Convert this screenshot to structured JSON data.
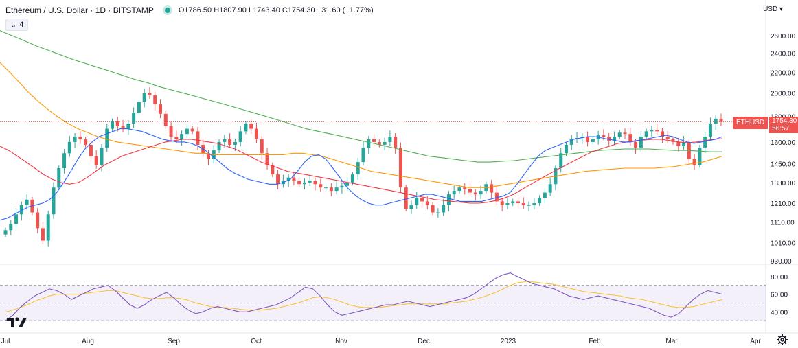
{
  "legend": {
    "symbol": "Ethereum / U.S. Dollar · 1D · BITSTAMP",
    "ohlc": "O1786.50  H1807.90  L1743.40  C1754.30  −31.60 (−1.77%)"
  },
  "indicators_collapsed": {
    "count": "4"
  },
  "currency": "USD",
  "price_tag": {
    "symbol": "ETHUSD",
    "price": "1754.30",
    "countdown": "56:57"
  },
  "y_axis_labels": [
    "2600.00",
    "2400.00",
    "2200.00",
    "2000.00",
    "1800.00",
    "1600.00",
    "1450.00",
    "1330.00",
    "1210.00",
    "1110.00",
    "1010.00",
    "930.00"
  ],
  "rsi_axis_labels": [
    "80.00",
    "60.00",
    "40.00"
  ],
  "x_axis_labels": [
    "Jul",
    "Aug",
    "Sep",
    "Oct",
    "Nov",
    "Dec",
    "2023",
    "Feb",
    "Mar",
    "Apr"
  ],
  "colors": {
    "up": "#26a69a",
    "down": "#ef5350",
    "sma_fast": "#2962ff",
    "sma_mid": "#f23645",
    "sma_slow": "#ff9800",
    "sma_long": "#4caf50",
    "rsi": "#7e57c2",
    "rsi_signal": "#fbc02d",
    "rsi_band": "#7e57c2"
  },
  "chart_data": {
    "type": "candlestick",
    "ylim": [
      930,
      2700
    ],
    "price": [
      1070,
      1100,
      1150,
      1200,
      1230,
      1160,
      1080,
      1020,
      1150,
      1300,
      1420,
      1520,
      1600,
      1640,
      1620,
      1580,
      1500,
      1440,
      1560,
      1700,
      1760,
      1720,
      1700,
      1740,
      1830,
      1920,
      2000,
      1980,
      1900,
      1820,
      1720,
      1640,
      1620,
      1660,
      1700,
      1680,
      1580,
      1520,
      1480,
      1540,
      1600,
      1620,
      1580,
      1600,
      1680,
      1740,
      1700,
      1620,
      1520,
      1440,
      1380,
      1320,
      1340,
      1360,
      1340,
      1320,
      1330,
      1340,
      1320,
      1300,
      1300,
      1280,
      1300,
      1310,
      1330,
      1380,
      1460,
      1560,
      1620,
      1600,
      1580,
      1600,
      1640,
      1560,
      1300,
      1180,
      1200,
      1240,
      1220,
      1200,
      1160,
      1160,
      1200,
      1260,
      1280,
      1300,
      1290,
      1270,
      1260,
      1280,
      1320,
      1270,
      1220,
      1200,
      1210,
      1220,
      1210,
      1200,
      1200,
      1210,
      1240,
      1270,
      1320,
      1420,
      1520,
      1580,
      1620,
      1630,
      1640,
      1600,
      1620,
      1650,
      1640,
      1610,
      1640,
      1670,
      1660,
      1600,
      1560,
      1640,
      1680,
      1690,
      1680,
      1640,
      1620,
      1600,
      1570,
      1600,
      1480,
      1440,
      1560,
      1640,
      1740,
      1780,
      1754.3
    ],
    "sma_fast": [
      1120,
      1130,
      1150,
      1170,
      1190,
      1200,
      1210,
      1230,
      1270,
      1330,
      1400,
      1480,
      1550,
      1600,
      1640,
      1660,
      1680,
      1700,
      1700,
      1690,
      1680,
      1660,
      1640,
      1620,
      1610,
      1600,
      1600,
      1590,
      1570,
      1540,
      1500,
      1460,
      1420,
      1390,
      1370,
      1350,
      1340,
      1330,
      1320,
      1320,
      1330,
      1350,
      1400,
      1460,
      1500,
      1510,
      1480,
      1420,
      1360,
      1300,
      1260,
      1230,
      1210,
      1200,
      1200,
      1210,
      1220,
      1230,
      1240,
      1250,
      1260,
      1260,
      1250,
      1240,
      1230,
      1220,
      1220,
      1220,
      1220,
      1230,
      1240,
      1250,
      1270,
      1320,
      1380,
      1440,
      1500,
      1540,
      1560,
      1580,
      1600,
      1620,
      1630,
      1640,
      1640,
      1630,
      1620,
      1610,
      1600,
      1600,
      1610,
      1620,
      1630,
      1640,
      1650,
      1640,
      1620,
      1600,
      1590,
      1600,
      1610,
      1620,
      1640
    ],
    "sma_mid": [
      1570,
      1540,
      1500,
      1460,
      1420,
      1380,
      1350,
      1330,
      1320,
      1330,
      1360,
      1400,
      1440,
      1470,
      1500,
      1520,
      1540,
      1560,
      1580,
      1600,
      1610,
      1620,
      1620,
      1610,
      1600,
      1590,
      1570,
      1550,
      1520,
      1490,
      1460,
      1440,
      1420,
      1400,
      1390,
      1380,
      1370,
      1360,
      1350,
      1340,
      1330,
      1320,
      1310,
      1300,
      1290,
      1280,
      1270,
      1260,
      1250,
      1240,
      1230,
      1225,
      1220,
      1215,
      1210,
      1210,
      1215,
      1225,
      1240,
      1260,
      1290,
      1320,
      1350,
      1380,
      1410,
      1440,
      1470,
      1500,
      1530,
      1550,
      1570,
      1590,
      1600,
      1610,
      1615,
      1620,
      1620,
      1610,
      1600,
      1595,
      1600,
      1610,
      1620,
      1625
    ],
    "sma_slow": [
      2300,
      2200,
      2100,
      2000,
      1920,
      1850,
      1790,
      1740,
      1700,
      1670,
      1640,
      1620,
      1600,
      1590,
      1580,
      1570,
      1560,
      1550,
      1540,
      1530,
      1520,
      1520,
      1510,
      1510,
      1510,
      1510,
      1510,
      1510,
      1510,
      1510,
      1520,
      1520,
      1510,
      1500,
      1480,
      1460,
      1440,
      1420,
      1400,
      1390,
      1380,
      1370,
      1360,
      1350,
      1340,
      1330,
      1320,
      1310,
      1300,
      1300,
      1300,
      1310,
      1320,
      1330,
      1340,
      1350,
      1360,
      1370,
      1380,
      1390,
      1400,
      1405,
      1410,
      1415,
      1420,
      1420,
      1420,
      1420,
      1425,
      1430,
      1440,
      1450,
      1460,
      1480,
      1500
    ],
    "sma_long": [
      2660,
      2600,
      2540,
      2480,
      2430,
      2380,
      2330,
      2290,
      2250,
      2210,
      2170,
      2130,
      2100,
      2060,
      2030,
      2000,
      1970,
      1940,
      1910,
      1880,
      1850,
      1820,
      1790,
      1760,
      1730,
      1700,
      1680,
      1660,
      1640,
      1620,
      1600,
      1580,
      1560,
      1540,
      1520,
      1500,
      1490,
      1480,
      1470,
      1460,
      1460,
      1465,
      1470,
      1480,
      1490,
      1500,
      1510,
      1520,
      1530,
      1540,
      1545,
      1550,
      1550,
      1550,
      1545,
      1540,
      1540,
      1535,
      1530,
      1530
    ],
    "rsi": [
      30,
      36,
      45,
      52,
      58,
      62,
      66,
      64,
      60,
      54,
      58,
      62,
      66,
      68,
      70,
      64,
      56,
      48,
      44,
      48,
      54,
      58,
      62,
      56,
      48,
      42,
      38,
      40,
      44,
      46,
      44,
      42,
      40,
      40,
      42,
      44,
      46,
      48,
      52,
      56,
      62,
      68,
      66,
      58,
      48,
      40,
      36,
      38,
      40,
      42,
      44,
      46,
      48,
      48,
      50,
      52,
      50,
      48,
      46,
      48,
      50,
      52,
      54,
      56,
      60,
      66,
      72,
      78,
      82,
      84,
      80,
      76,
      72,
      70,
      68,
      66,
      62,
      58,
      56,
      54,
      56,
      58,
      56,
      54,
      52,
      50,
      48,
      46,
      44,
      40,
      36,
      34,
      38,
      46,
      54,
      60,
      64,
      62,
      60
    ],
    "rsi_signal": [
      40,
      42,
      45,
      48,
      52,
      55,
      58,
      60,
      60,
      60,
      60,
      61,
      62,
      63,
      64,
      64,
      62,
      60,
      58,
      56,
      55,
      55,
      56,
      56,
      55,
      53,
      50,
      48,
      46,
      45,
      45,
      44,
      43,
      42,
      42,
      42,
      43,
      44,
      46,
      48,
      50,
      53,
      56,
      57,
      56,
      54,
      51,
      48,
      46,
      45,
      45,
      45,
      46,
      47,
      48,
      49,
      49,
      49,
      49,
      49,
      49,
      50,
      51,
      52,
      54,
      56,
      59,
      62,
      66,
      70,
      73,
      74,
      74,
      73,
      72,
      71,
      69,
      67,
      65,
      63,
      62,
      61,
      60,
      59,
      58,
      56,
      55,
      54,
      52,
      50,
      48,
      46,
      45,
      45,
      46,
      48,
      50,
      52,
      54
    ],
    "rsi_range": [
      20,
      90
    ],
    "rsi_levels": [
      70,
      30
    ]
  }
}
